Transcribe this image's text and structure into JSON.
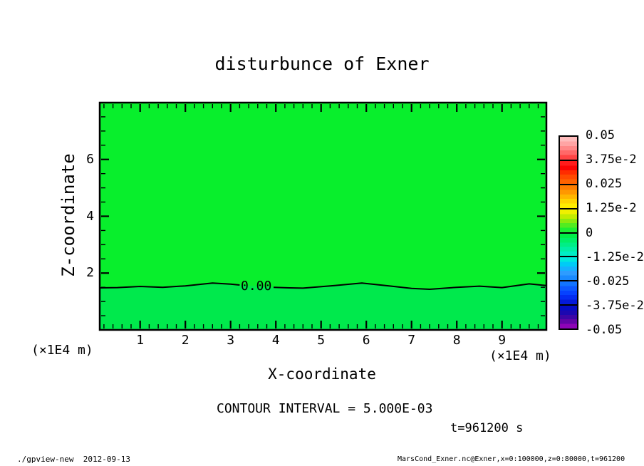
{
  "title": "disturbunce of Exner",
  "axes": {
    "x_label": "X-coordinate",
    "y_label": "Z-coordinate",
    "x_unit": "(×1E4 m)",
    "x_ticks": [
      1,
      2,
      3,
      4,
      5,
      6,
      7,
      8,
      9
    ],
    "y_ticks": [
      2,
      4,
      6
    ]
  },
  "colorbar": {
    "labels": [
      "0.05",
      "3.75e-2",
      "0.025",
      "1.25e-2",
      "0",
      "-1.25e-2",
      "-0.025",
      "-3.75e-2",
      "-0.05"
    ]
  },
  "contour": {
    "label": "0.00",
    "interval_text": "CONTOUR INTERVAL = 5.000E-03"
  },
  "annotations": {
    "time": "t=961200 s"
  },
  "footer": {
    "left": "./gpview-new  2012-09-13",
    "right": "MarsCond_Exner.nc@Exner,x=0:100000,z=0:80000,t=961200"
  },
  "colors": {
    "fill_upper": "#08ef2c",
    "fill_lower": "#00e94c",
    "frame": "#000000",
    "colorbar_boxes": [
      [
        "#ffbcbc",
        "#ffa4a4",
        "#ff8888",
        "#ff6868",
        "#ff4444"
      ],
      [
        "#ff1c1c",
        "#fa0404",
        "#ff2c00",
        "#ff4a00",
        "#ff6200"
      ],
      [
        "#ff7e00",
        "#ff9800",
        "#ffb600",
        "#ffd400",
        "#ffec00"
      ],
      [
        "#f0f000",
        "#c2ec00",
        "#8cea0e",
        "#52ec20",
        "#1cee32"
      ],
      [
        "#00ee48",
        "#00ee66",
        "#00ee86",
        "#00eea6",
        "#00eec6"
      ],
      [
        "#00e8de",
        "#00ccf6",
        "#16b0ff",
        "#2e9cff",
        "#1a8aff"
      ],
      [
        "#1274ff",
        "#0c58ff",
        "#0642ff",
        "#042cf2",
        "#041ada"
      ],
      [
        "#040cc6",
        "#1c08b0",
        "#3c06a6",
        "#6204a6",
        "#8e04b6"
      ]
    ]
  },
  "chart_data": {
    "type": "heatmap",
    "title": "disturbunce of Exner",
    "xlabel": "X-coordinate",
    "ylabel": "Z-coordinate",
    "axis_unit": "(×1E4 m)",
    "x_range": [
      0,
      10
    ],
    "z_range": [
      0,
      8
    ],
    "x_ticks": [
      1,
      2,
      3,
      4,
      5,
      6,
      7,
      8,
      9
    ],
    "z_ticks": [
      2,
      4,
      6
    ],
    "x_minor_step": 0.2,
    "z_minor_step": 0.5,
    "contour_interval": 0.005,
    "levels": [
      0.05,
      0.0375,
      0.025,
      0.0125,
      0,
      -0.0125,
      -0.025,
      -0.0375,
      -0.05
    ],
    "field_summary": "Exner disturbance near zero over entire domain; band 0..+0.005 above the zero contour, -0.005..0 below it",
    "zero_contour_points": [
      [
        0.1,
        1.48
      ],
      [
        0.5,
        1.49
      ],
      [
        1.0,
        1.53
      ],
      [
        1.5,
        1.5
      ],
      [
        2.0,
        1.55
      ],
      [
        2.6,
        1.65
      ],
      [
        3.0,
        1.61
      ],
      [
        3.2,
        1.58
      ],
      [
        3.95,
        1.5
      ],
      [
        4.3,
        1.48
      ],
      [
        4.6,
        1.47
      ],
      [
        5.3,
        1.56
      ],
      [
        5.9,
        1.65
      ],
      [
        6.5,
        1.55
      ],
      [
        7.0,
        1.46
      ],
      [
        7.4,
        1.43
      ],
      [
        8.0,
        1.5
      ],
      [
        8.5,
        1.54
      ],
      [
        9.0,
        1.49
      ],
      [
        9.6,
        1.62
      ],
      [
        9.98,
        1.56
      ]
    ],
    "zero_contour_gap_after_index": 7,
    "legend_position": "right",
    "grid": false
  }
}
